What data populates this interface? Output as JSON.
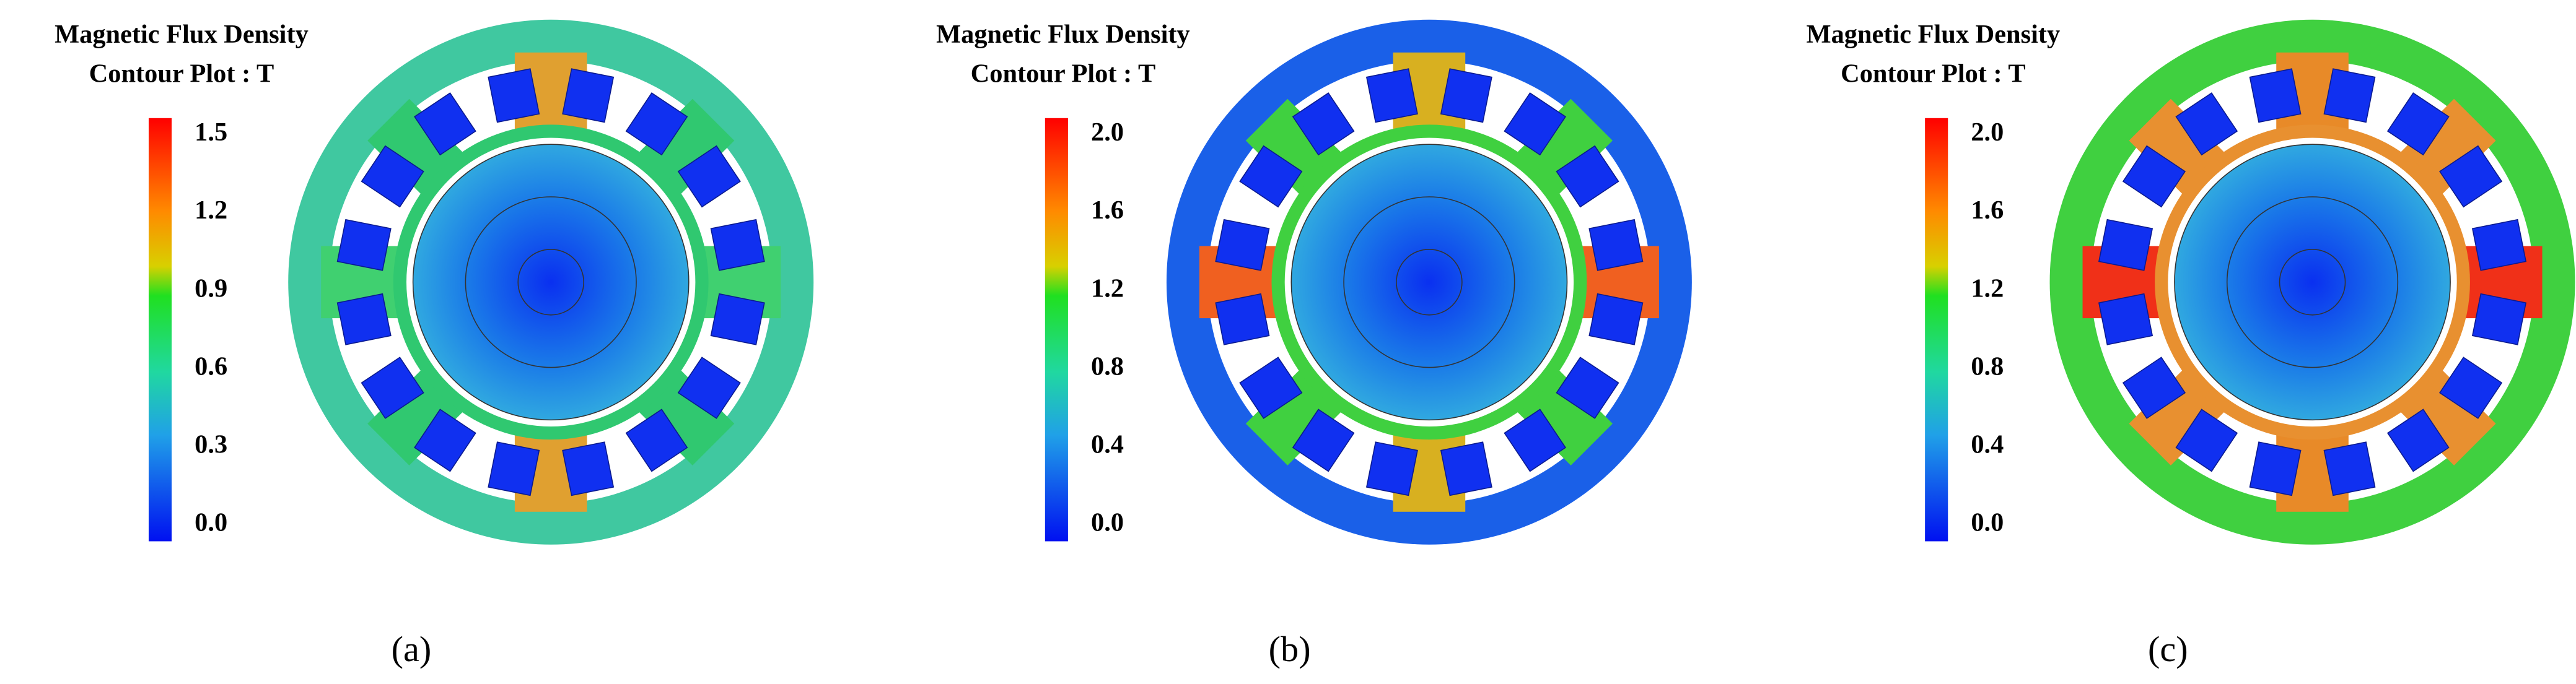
{
  "panels": [
    {
      "title": [
        "Magnetic Flux Density",
        "Contour Plot : T"
      ],
      "colorbar_ticks": [
        "1.5",
        "1.2",
        "0.9",
        "0.6",
        "0.3",
        "0.0"
      ],
      "caption": "(a)"
    },
    {
      "title": [
        "Magnetic Flux Density",
        "Contour Plot : T"
      ],
      "colorbar_ticks": [
        "2.0",
        "1.6",
        "1.2",
        "0.8",
        "0.4",
        "0.0"
      ],
      "caption": "(b)"
    },
    {
      "title": [
        "Magnetic Flux Density",
        "Contour Plot : T"
      ],
      "colorbar_ticks": [
        "2.0",
        "1.6",
        "1.2",
        "0.8",
        "0.4",
        "0.0"
      ],
      "caption": "(c)"
    }
  ]
}
